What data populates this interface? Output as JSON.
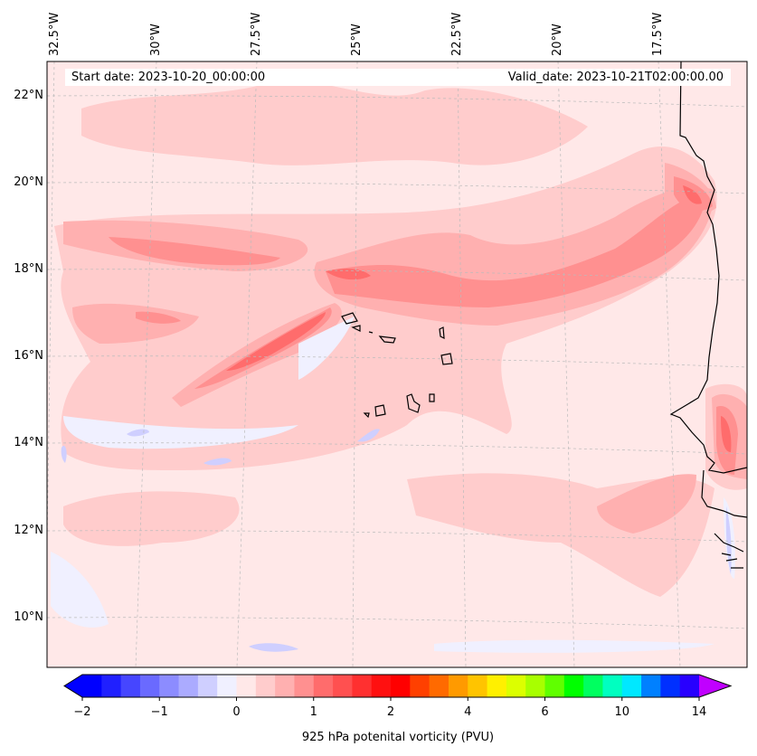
{
  "header": {
    "start_date": "Start date: 2023-10-20_00:00:00",
    "valid_date": "Valid_date: 2023-10-21T02:00:00.00"
  },
  "lon_labels": [
    "32.5°W",
    "30°W",
    "27.5°W",
    "25°W",
    "22.5°W",
    "20°W",
    "17.5°W"
  ],
  "lat_labels": [
    "22°N",
    "20°N",
    "18°N",
    "16°N",
    "14°N",
    "12°N",
    "10°N"
  ],
  "colorbar": {
    "label": "925 hPa potenital vorticity (PVU)",
    "ticks": [
      "−2",
      "−1",
      "0",
      "1",
      "2",
      "4",
      "6",
      "10",
      "14"
    ],
    "extend_low_color": "#0000ff",
    "extend_high_color": "#c000ff",
    "colors": [
      "#0000ff",
      "#2020ff",
      "#4646ff",
      "#6a6aff",
      "#8c8cff",
      "#ababff",
      "#cfcfff",
      "#f0f0ff",
      "#ffe8e8",
      "#ffcccc",
      "#ffb0b0",
      "#ff9090",
      "#ff6c6c",
      "#ff5050",
      "#ff3030",
      "#ff1010",
      "#ff0000",
      "#ff4000",
      "#ff6a00",
      "#ff9a00",
      "#ffc400",
      "#fff000",
      "#dcff00",
      "#a8ff00",
      "#60ff00",
      "#00ff00",
      "#00ff60",
      "#00ffc0",
      "#00e8ff",
      "#0080ff",
      "#0030ff",
      "#2800ff",
      "#9000ff"
    ]
  }
}
